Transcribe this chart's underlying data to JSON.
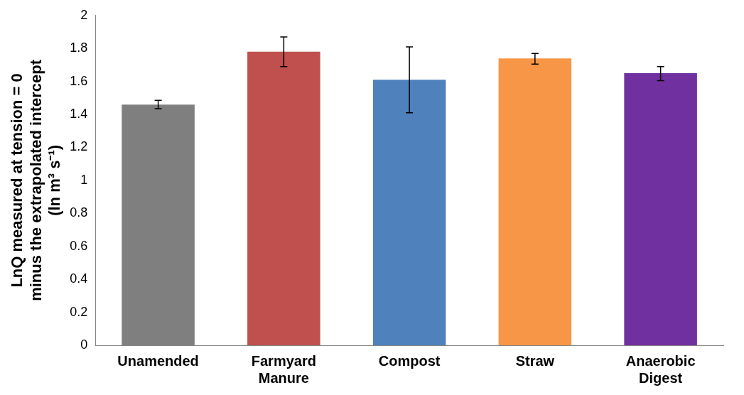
{
  "chart_data": {
    "type": "bar",
    "ylabel": "LnQ measured at tension = 0\nminus the extrapolated intercept\n(ln m³ s⁻¹)",
    "categories": [
      "Unamended",
      "Farmyard Manure",
      "Compost",
      "Straw",
      "Anaerobic Digest"
    ],
    "values": [
      1.46,
      1.78,
      1.61,
      1.74,
      1.65
    ],
    "colors": [
      "#7f7f7f",
      "#c0504d",
      "#4f81bd",
      "#f79646",
      "#7030a0"
    ],
    "errors": [
      [
        1.435,
        1.485
      ],
      [
        1.69,
        1.87
      ],
      [
        1.41,
        1.81
      ],
      [
        1.705,
        1.77
      ],
      [
        1.605,
        1.69
      ]
    ],
    "ylim": [
      0,
      2
    ],
    "yticks": [
      0,
      0.2,
      0.4,
      0.6,
      0.8,
      1,
      1.2,
      1.4,
      1.6,
      1.8,
      2
    ],
    "grid": false,
    "legend": false
  }
}
